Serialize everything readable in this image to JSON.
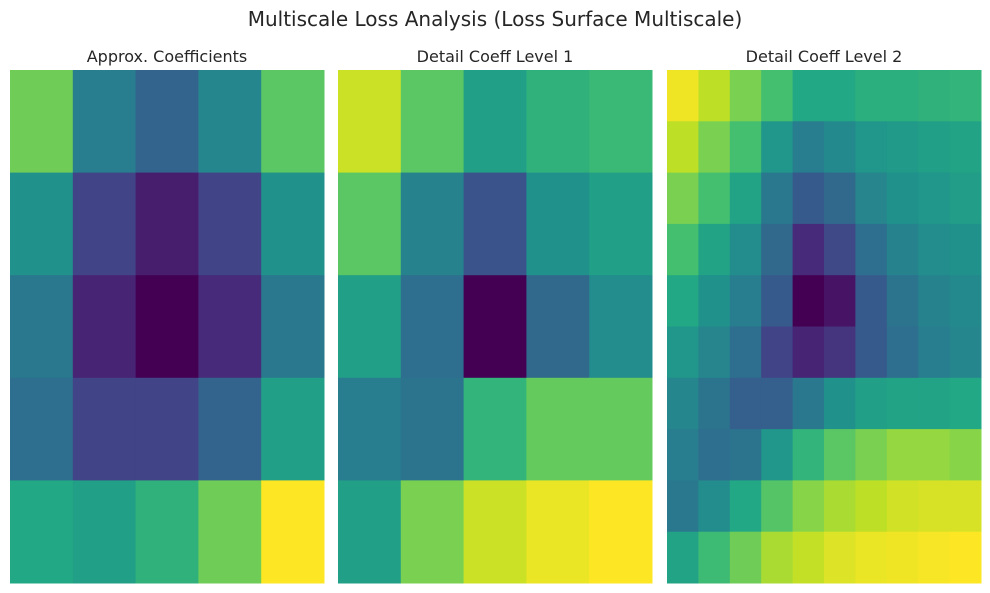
{
  "chart_data": {
    "type": "heatmap",
    "title": "Multiscale Loss Analysis (Loss Surface Multiscale)",
    "colormap": "viridis",
    "value_scale": "normalized 0-1 (no colorbar shown)",
    "panels": [
      {
        "title": "Approx. Coefficients",
        "values": [
          [
            0.78,
            0.42,
            0.32,
            0.46,
            0.74
          ],
          [
            0.5,
            0.2,
            0.08,
            0.2,
            0.5
          ],
          [
            0.4,
            0.1,
            0.0,
            0.12,
            0.4
          ],
          [
            0.36,
            0.2,
            0.2,
            0.32,
            0.56
          ],
          [
            0.6,
            0.56,
            0.64,
            0.78,
            1.0
          ]
        ]
      },
      {
        "title": "Detail Coeff Level 1",
        "values": [
          [
            0.92,
            0.74,
            0.56,
            0.64,
            0.67
          ],
          [
            0.74,
            0.44,
            0.26,
            0.5,
            0.56
          ],
          [
            0.56,
            0.36,
            0.0,
            0.34,
            0.48
          ],
          [
            0.42,
            0.38,
            0.65,
            0.76,
            0.76
          ],
          [
            0.56,
            0.8,
            0.92,
            0.97,
            1.0
          ]
        ]
      },
      {
        "title": "Detail Coeff Level 2",
        "values": [
          [
            0.98,
            0.9,
            0.8,
            0.7,
            0.6,
            0.6,
            0.63,
            0.63,
            0.64,
            0.65
          ],
          [
            0.9,
            0.8,
            0.7,
            0.52,
            0.42,
            0.47,
            0.52,
            0.54,
            0.56,
            0.58
          ],
          [
            0.8,
            0.7,
            0.58,
            0.4,
            0.28,
            0.34,
            0.45,
            0.5,
            0.52,
            0.55
          ],
          [
            0.7,
            0.58,
            0.48,
            0.34,
            0.12,
            0.22,
            0.36,
            0.44,
            0.48,
            0.5
          ],
          [
            0.6,
            0.5,
            0.42,
            0.28,
            0.0,
            0.05,
            0.28,
            0.38,
            0.44,
            0.47
          ],
          [
            0.52,
            0.45,
            0.36,
            0.2,
            0.1,
            0.15,
            0.28,
            0.36,
            0.42,
            0.46
          ],
          [
            0.46,
            0.38,
            0.3,
            0.3,
            0.4,
            0.5,
            0.56,
            0.58,
            0.58,
            0.6
          ],
          [
            0.42,
            0.36,
            0.38,
            0.52,
            0.65,
            0.74,
            0.8,
            0.84,
            0.84,
            0.82
          ],
          [
            0.4,
            0.48,
            0.6,
            0.73,
            0.82,
            0.87,
            0.9,
            0.93,
            0.94,
            0.94
          ],
          [
            0.58,
            0.68,
            0.78,
            0.87,
            0.91,
            0.95,
            0.97,
            0.98,
            0.99,
            1.0
          ]
        ]
      }
    ],
    "axes_visible": false,
    "grid": false
  }
}
